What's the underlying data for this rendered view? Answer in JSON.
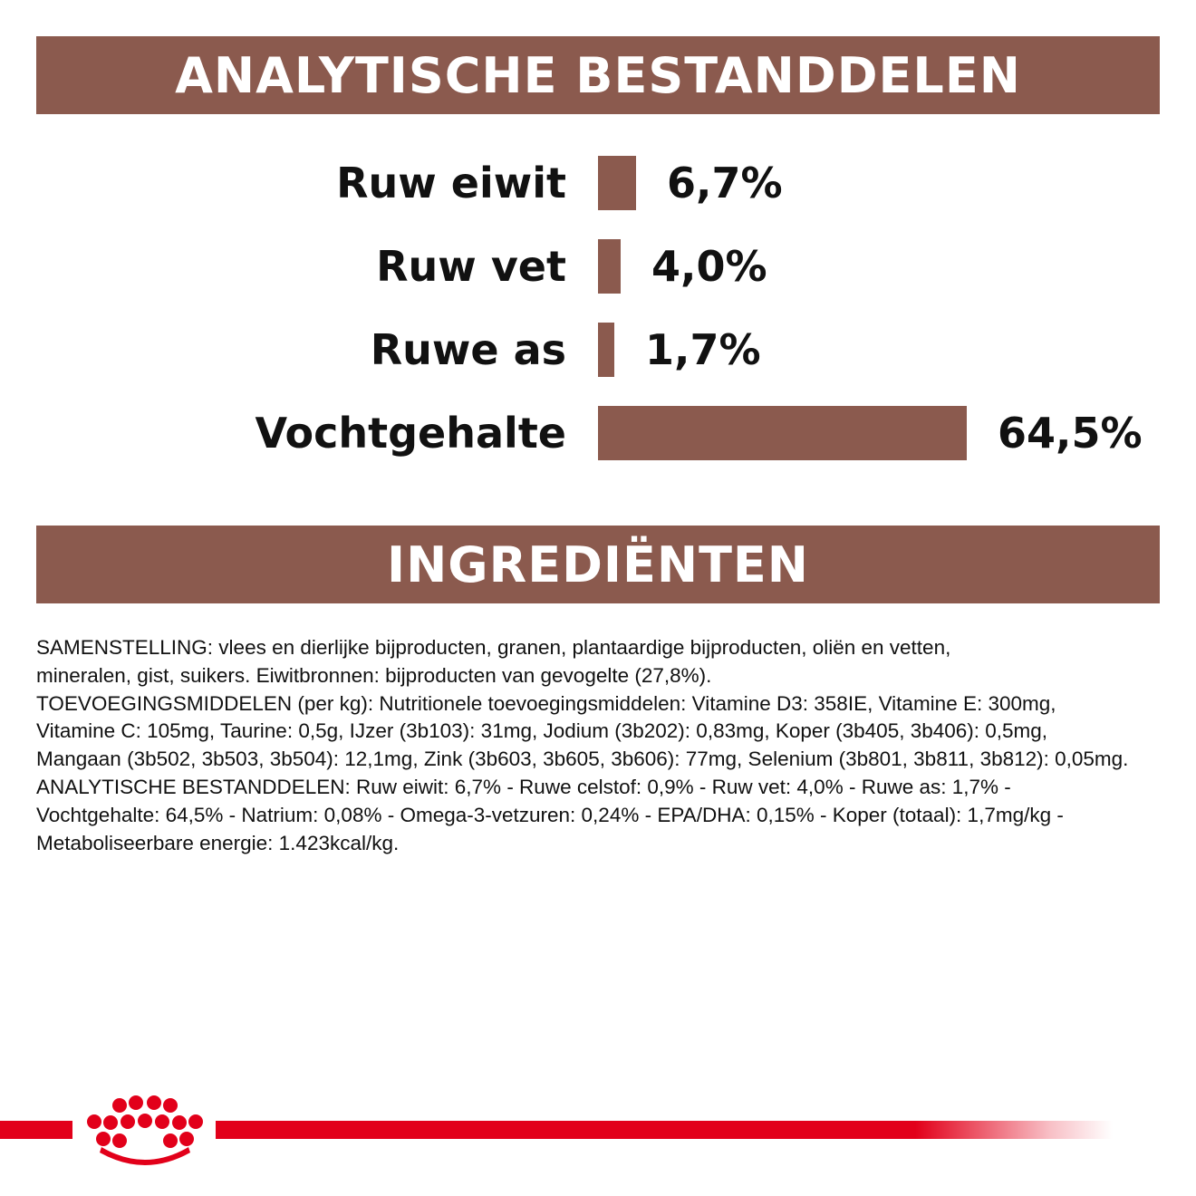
{
  "analytic": {
    "title": "ANALYTISCHE BESTANDDELEN",
    "rows": [
      {
        "label": "Ruw eiwit",
        "value": "6,7%",
        "percent": 6.7
      },
      {
        "label": "Ruw vet",
        "value": "4,0%",
        "percent": 4.0
      },
      {
        "label": "Ruwe as",
        "value": "1,7%",
        "percent": 1.7
      },
      {
        "label": "Vochtgehalte",
        "value": "64,5%",
        "percent": 64.5
      }
    ],
    "bar_color": "#8b5a4e"
  },
  "ingredients": {
    "title": "INGREDIËNTEN",
    "lines": [
      "SAMENSTELLING: vlees en dierlijke bijproducten, granen, plantaardige bijproducten, oliën en vetten,",
      "mineralen, gist, suikers. Eiwitbronnen: bijproducten van gevogelte (27,8%).",
      "TOEVOEGINGSMIDDELEN (per kg): Nutritionele toevoegingsmiddelen: Vitamine D3: 358IE, Vitamine E: 300mg,",
      "Vitamine C: 105mg, Taurine: 0,5g, IJzer (3b103): 31mg, Jodium (3b202): 0,83mg, Koper (3b405, 3b406): 0,5mg,",
      "Mangaan (3b502, 3b503, 3b504): 12,1mg, Zink (3b603, 3b605, 3b606): 77mg, Selenium (3b801, 3b811, 3b812): 0,05mg.",
      "ANALYTISCHE BESTANDDELEN: Ruw eiwit: 6,7% - Ruwe celstof: 0,9% - Ruw vet: 4,0% - Ruwe as: 1,7% -",
      "Vochtgehalte: 64,5% - Natrium: 0,08% - Omega-3-vetzuren: 0,24% - EPA/DHA: 0,15% - Koper (totaal): 1,7mg/kg -",
      "Metaboliseerbare energie: 1.423kcal/kg."
    ]
  },
  "footer": {
    "logo": "crown-logo",
    "brand_color": "#e2001a"
  }
}
